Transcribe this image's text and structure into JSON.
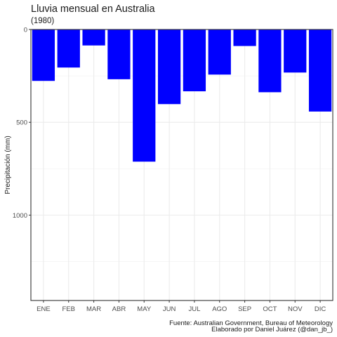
{
  "chart_data": {
    "type": "bar",
    "title": "Lluvia mensual en Australia",
    "subtitle": "(1980)",
    "xlabel": "",
    "ylabel": "Precipitación (mm)",
    "categories": [
      "ENE",
      "FEB",
      "MAR",
      "ABR",
      "MAY",
      "JUN",
      "JUL",
      "AGO",
      "SEP",
      "OCT",
      "NOV",
      "DIC"
    ],
    "values": [
      277,
      205,
      86,
      268,
      712,
      402,
      333,
      243,
      89,
      338,
      232,
      442
    ],
    "y_reversed": true,
    "ylim": [
      0,
      1460
    ],
    "yticks": [
      0,
      500,
      1000
    ],
    "grid": true,
    "bar_color": "#0000ff",
    "caption": [
      "Fuente: Australian Government, Bureau of Meteorology",
      "Elaborado por Daniel Juárez (@dan_jb_)"
    ]
  }
}
